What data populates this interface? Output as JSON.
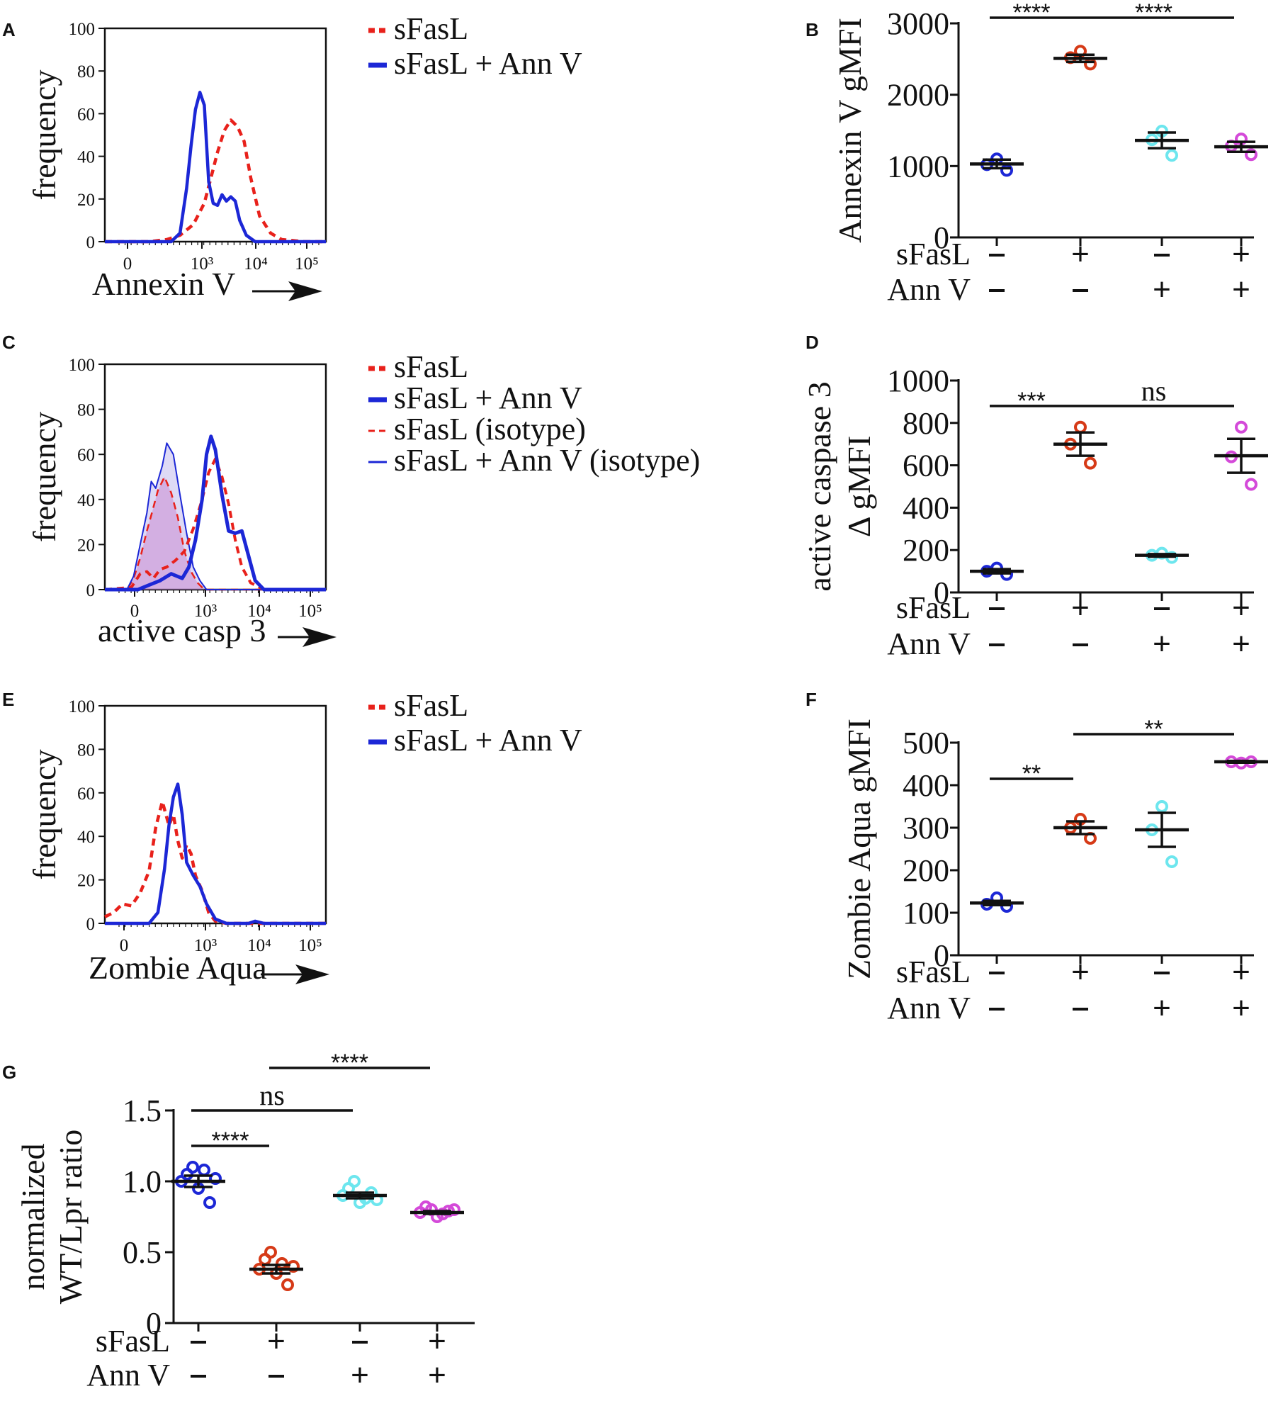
{
  "chart_data": [
    {
      "panel": "A",
      "type": "line",
      "xlabel": "Annexin V",
      "ylabel": "frequency",
      "ylim": [
        0,
        100
      ],
      "yticks": [
        "0",
        "20",
        "40",
        "60",
        "80",
        "100"
      ],
      "xticks": [
        "0",
        "10³",
        "10⁴",
        "10⁵"
      ],
      "legend": [
        "sFasL",
        "sFasL + Ann V"
      ],
      "series": [
        {
          "name": "sFasL",
          "color": "#e8211b",
          "dash": true,
          "points": [
            [
              0,
              0
            ],
            [
              0.2,
              0
            ],
            [
              0.28,
              1
            ],
            [
              0.34,
              3
            ],
            [
              0.4,
              8
            ],
            [
              0.45,
              18
            ],
            [
              0.48,
              30
            ],
            [
              0.51,
              42
            ],
            [
              0.54,
              52
            ],
            [
              0.57,
              57
            ],
            [
              0.6,
              54
            ],
            [
              0.63,
              47
            ],
            [
              0.66,
              30
            ],
            [
              0.7,
              12
            ],
            [
              0.75,
              4
            ],
            [
              0.8,
              1
            ],
            [
              0.9,
              0
            ],
            [
              1,
              0
            ]
          ]
        },
        {
          "name": "sFasL + Ann V",
          "color": "#1c27d6",
          "dash": false,
          "points": [
            [
              0,
              0
            ],
            [
              0.3,
              0
            ],
            [
              0.34,
              4
            ],
            [
              0.37,
              25
            ],
            [
              0.39,
              45
            ],
            [
              0.41,
              62
            ],
            [
              0.43,
              70
            ],
            [
              0.45,
              64
            ],
            [
              0.47,
              28
            ],
            [
              0.49,
              18
            ],
            [
              0.51,
              17
            ],
            [
              0.53,
              22
            ],
            [
              0.55,
              19
            ],
            [
              0.57,
              21
            ],
            [
              0.59,
              19
            ],
            [
              0.61,
              10
            ],
            [
              0.64,
              3
            ],
            [
              0.68,
              0
            ],
            [
              1,
              0
            ]
          ]
        }
      ]
    },
    {
      "panel": "B",
      "type": "scatter",
      "ylabel": "Annexin V gMFI",
      "ylim": [
        0,
        3000
      ],
      "yticks": [
        "0",
        "1000",
        "2000",
        "3000"
      ],
      "rows": {
        "sFasL": [
          "-",
          "+",
          "-",
          "+"
        ],
        "Ann V": [
          "-",
          "-",
          "+",
          "+"
        ]
      },
      "groups": [
        {
          "color": "#1c27d6",
          "values": [
            1020,
            1100,
            940
          ],
          "mean": 1030,
          "sem": 60
        },
        {
          "color": "#d63a17",
          "values": [
            2520,
            2610,
            2430
          ],
          "mean": 2510,
          "sem": 50
        },
        {
          "color": "#6de6ee",
          "values": [
            1370,
            1490,
            1150
          ],
          "mean": 1360,
          "sem": 110
        },
        {
          "color": "#d44ad9",
          "values": [
            1280,
            1380,
            1160
          ],
          "mean": 1270,
          "sem": 70
        }
      ],
      "significance": [
        {
          "from": 0,
          "to": 1,
          "label": "****",
          "y": 3080
        },
        {
          "from": 1,
          "to": 3,
          "label": "****",
          "y": 3080
        }
      ]
    },
    {
      "panel": "C",
      "type": "line",
      "xlabel": "active casp 3",
      "ylabel": "frequency",
      "ylim": [
        0,
        100
      ],
      "yticks": [
        "0",
        "20",
        "40",
        "60",
        "80",
        "100"
      ],
      "xticks": [
        "0",
        "10³",
        "10⁴",
        "10⁵"
      ],
      "legend": [
        "sFasL",
        "sFasL + Ann V",
        "sFasL (isotype)",
        "sFasL + Ann V (isotype)"
      ],
      "series": [
        {
          "name": "sFasL",
          "color": "#e8211b",
          "dash": true,
          "width": 4,
          "points": [
            [
              0,
              0
            ],
            [
              0.12,
              1
            ],
            [
              0.16,
              7
            ],
            [
              0.19,
              8
            ],
            [
              0.22,
              5
            ],
            [
              0.25,
              9
            ],
            [
              0.28,
              10
            ],
            [
              0.32,
              13
            ],
            [
              0.36,
              17
            ],
            [
              0.4,
              27
            ],
            [
              0.44,
              40
            ],
            [
              0.47,
              52
            ],
            [
              0.5,
              58
            ],
            [
              0.53,
              50
            ],
            [
              0.56,
              38
            ],
            [
              0.59,
              22
            ],
            [
              0.62,
              10
            ],
            [
              0.66,
              3
            ],
            [
              0.72,
              0
            ],
            [
              1,
              0
            ]
          ]
        },
        {
          "name": "sFasL + Ann V",
          "color": "#1c27d6",
          "dash": false,
          "width": 5,
          "points": [
            [
              0,
              0
            ],
            [
              0.15,
              0
            ],
            [
              0.2,
              2
            ],
            [
              0.25,
              4
            ],
            [
              0.3,
              7
            ],
            [
              0.35,
              5
            ],
            [
              0.38,
              10
            ],
            [
              0.41,
              22
            ],
            [
              0.44,
              40
            ],
            [
              0.46,
              60
            ],
            [
              0.48,
              68
            ],
            [
              0.5,
              62
            ],
            [
              0.53,
              42
            ],
            [
              0.56,
              26
            ],
            [
              0.59,
              25
            ],
            [
              0.62,
              26
            ],
            [
              0.65,
              15
            ],
            [
              0.68,
              4
            ],
            [
              0.72,
              0
            ],
            [
              1,
              0
            ]
          ]
        },
        {
          "name": "sFasL (isotype)",
          "color": "#e8211b",
          "dash": true,
          "width": 2.5,
          "fill": "rgba(220,110,190,0.45)",
          "points": [
            [
              0,
              0
            ],
            [
              0.1,
              0
            ],
            [
              0.13,
              5
            ],
            [
              0.16,
              14
            ],
            [
              0.19,
              26
            ],
            [
              0.21,
              33
            ],
            [
              0.24,
              44
            ],
            [
              0.27,
              50
            ],
            [
              0.3,
              43
            ],
            [
              0.33,
              32
            ],
            [
              0.36,
              17
            ],
            [
              0.39,
              8
            ],
            [
              0.42,
              3
            ],
            [
              0.45,
              0
            ],
            [
              1,
              0
            ]
          ]
        },
        {
          "name": "sFasL + Ann V (isotype)",
          "color": "#1c27d6",
          "dash": false,
          "width": 2,
          "fill": "rgba(160,150,225,0.35)",
          "points": [
            [
              0,
              0
            ],
            [
              0.1,
              0
            ],
            [
              0.13,
              6
            ],
            [
              0.16,
              20
            ],
            [
              0.19,
              34
            ],
            [
              0.21,
              48
            ],
            [
              0.23,
              45
            ],
            [
              0.26,
              55
            ],
            [
              0.28,
              65
            ],
            [
              0.31,
              60
            ],
            [
              0.34,
              42
            ],
            [
              0.37,
              25
            ],
            [
              0.4,
              10
            ],
            [
              0.43,
              4
            ],
            [
              0.46,
              0
            ],
            [
              1,
              0
            ]
          ]
        }
      ]
    },
    {
      "panel": "D",
      "type": "scatter",
      "ylabel": "active caspase 3 Δ gMFI",
      "ylabel_lines": [
        "active caspase 3",
        "Δ gMFI"
      ],
      "ylim": [
        0,
        1000
      ],
      "yticks": [
        "0",
        "200",
        "400",
        "600",
        "800",
        "1000"
      ],
      "rows": {
        "sFasL": [
          "-",
          "+",
          "-",
          "+"
        ],
        "Ann V": [
          "-",
          "-",
          "+",
          "+"
        ]
      },
      "groups": [
        {
          "color": "#1c27d6",
          "values": [
            100,
            115,
            85
          ],
          "mean": 100,
          "sem": 10
        },
        {
          "color": "#d63a17",
          "values": [
            700,
            780,
            610
          ],
          "mean": 700,
          "sem": 55
        },
        {
          "color": "#6de6ee",
          "values": [
            175,
            185,
            165
          ],
          "mean": 175,
          "sem": 6
        },
        {
          "color": "#d44ad9",
          "values": [
            640,
            780,
            510
          ],
          "mean": 645,
          "sem": 80
        }
      ],
      "significance": [
        {
          "from": 0,
          "to": 1,
          "label": "***",
          "y": 880
        },
        {
          "from": 1,
          "to": 3,
          "label": "ns",
          "y": 880
        }
      ]
    },
    {
      "panel": "E",
      "type": "line",
      "xlabel": "Zombie Aqua",
      "ylabel": "frequency",
      "ylim": [
        0,
        100
      ],
      "yticks": [
        "0",
        "20",
        "40",
        "60",
        "80",
        "100"
      ],
      "xticks": [
        "0",
        "10³",
        "10⁴",
        "10⁵"
      ],
      "legend": [
        "sFasL",
        "sFasL + Ann V"
      ],
      "series": [
        {
          "name": "sFasL",
          "color": "#e8211b",
          "dash": true,
          "points": [
            [
              0,
              3
            ],
            [
              0.04,
              5
            ],
            [
              0.08,
              9
            ],
            [
              0.12,
              8
            ],
            [
              0.16,
              14
            ],
            [
              0.2,
              24
            ],
            [
              0.23,
              44
            ],
            [
              0.26,
              56
            ],
            [
              0.29,
              45
            ],
            [
              0.31,
              50
            ],
            [
              0.33,
              38
            ],
            [
              0.35,
              30
            ],
            [
              0.37,
              36
            ],
            [
              0.39,
              32
            ],
            [
              0.41,
              22
            ],
            [
              0.44,
              15
            ],
            [
              0.47,
              5
            ],
            [
              0.5,
              1
            ],
            [
              0.55,
              0
            ],
            [
              1,
              0
            ]
          ]
        },
        {
          "name": "sFasL + Ann V",
          "color": "#1c27d6",
          "dash": false,
          "points": [
            [
              0,
              0
            ],
            [
              0.2,
              0
            ],
            [
              0.24,
              5
            ],
            [
              0.27,
              25
            ],
            [
              0.29,
              45
            ],
            [
              0.31,
              58
            ],
            [
              0.33,
              64
            ],
            [
              0.35,
              50
            ],
            [
              0.37,
              28
            ],
            [
              0.4,
              22
            ],
            [
              0.43,
              17
            ],
            [
              0.46,
              9
            ],
            [
              0.5,
              2
            ],
            [
              0.55,
              0
            ],
            [
              0.65,
              0
            ],
            [
              0.68,
              1
            ],
            [
              0.72,
              0
            ],
            [
              1,
              0
            ]
          ]
        }
      ]
    },
    {
      "panel": "F",
      "type": "scatter",
      "ylabel": "Zombie Aqua gMFI",
      "ylim": [
        0,
        500
      ],
      "yticks": [
        "0",
        "100",
        "200",
        "300",
        "400",
        "500"
      ],
      "rows": {
        "sFasL": [
          "-",
          "+",
          "-",
          "+"
        ],
        "Ann V": [
          "-",
          "-",
          "+",
          "+"
        ]
      },
      "groups": [
        {
          "color": "#1c27d6",
          "values": [
            120,
            135,
            115
          ],
          "mean": 123,
          "sem": 5
        },
        {
          "color": "#d63a17",
          "values": [
            300,
            320,
            275
          ],
          "mean": 300,
          "sem": 15
        },
        {
          "color": "#6de6ee",
          "values": [
            295,
            350,
            220
          ],
          "mean": 295,
          "sem": 40
        },
        {
          "color": "#d44ad9",
          "values": [
            455,
            452,
            455
          ],
          "mean": 455,
          "sem": 2
        }
      ],
      "significance": [
        {
          "from": 0,
          "to": 1,
          "label": "**",
          "y": 415
        },
        {
          "from": 1,
          "to": 3,
          "label": "**",
          "y": 520
        }
      ]
    },
    {
      "panel": "G",
      "type": "scatter",
      "ylabel": "normalized WT/Lpr ratio",
      "ylabel_lines": [
        "normalized",
        "WT/Lpr ratio"
      ],
      "ylim": [
        0,
        1.5
      ],
      "yticks": [
        "0",
        "0.5",
        "1.0",
        "1.5"
      ],
      "rows": {
        "sFasL": [
          "-",
          "+",
          "-",
          "+"
        ],
        "Ann V": [
          "-",
          "-",
          "+",
          "+"
        ]
      },
      "groups": [
        {
          "color": "#1c27d6",
          "values": [
            1.0,
            1.05,
            1.1,
            0.95,
            1.08,
            0.85,
            1.02
          ],
          "mean": 1.0,
          "sem": 0.04
        },
        {
          "color": "#d63a17",
          "values": [
            0.38,
            0.45,
            0.5,
            0.35,
            0.42,
            0.27,
            0.4
          ],
          "mean": 0.38,
          "sem": 0.03
        },
        {
          "color": "#6de6ee",
          "values": [
            0.9,
            0.95,
            1.0,
            0.85,
            0.88,
            0.92,
            0.87
          ],
          "mean": 0.9,
          "sem": 0.02
        },
        {
          "color": "#d44ad9",
          "values": [
            0.78,
            0.82,
            0.8,
            0.75,
            0.77,
            0.79,
            0.8
          ],
          "mean": 0.78,
          "sem": 0.01
        }
      ],
      "significance": [
        {
          "from": 0,
          "to": 1,
          "label": "****",
          "y": 1.25
        },
        {
          "from": 0,
          "to": 2,
          "label": "ns",
          "y": 1.5
        },
        {
          "from": 1,
          "to": 3,
          "label": "****",
          "y": 1.8
        }
      ]
    }
  ]
}
